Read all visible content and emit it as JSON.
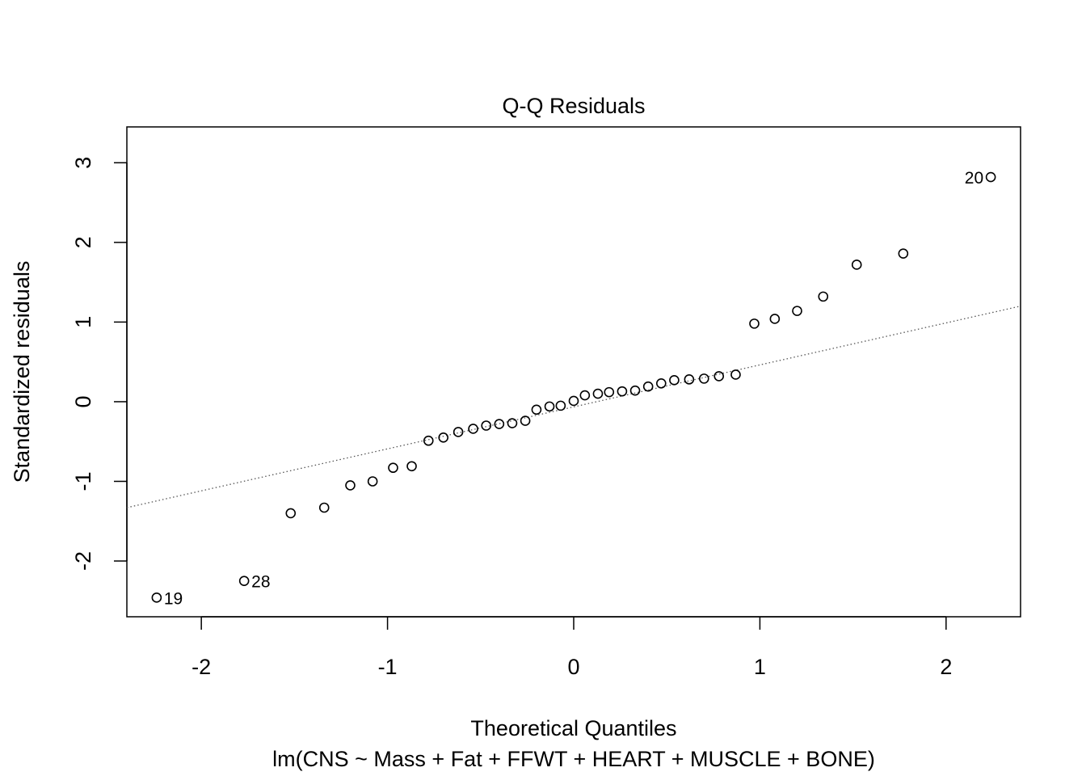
{
  "chart_data": {
    "type": "scatter",
    "title": "Q-Q Residuals",
    "xlabel": "Theoretical Quantiles",
    "ylabel": "Standardized residuals",
    "subtitle": "lm(CNS ~ Mass + Fat + FFWT + HEART + MUSCLE + BONE)",
    "xlim": [
      -2.4,
      2.4
    ],
    "ylim": [
      -2.7,
      3.45
    ],
    "x_ticks": [
      -2,
      -1,
      0,
      1,
      2
    ],
    "x_tick_labels": [
      "-2",
      "-1",
      "0",
      "1",
      "2"
    ],
    "y_ticks": [
      -2,
      -1,
      0,
      1,
      2,
      3
    ],
    "y_tick_labels": [
      "-2",
      "-1",
      "0",
      "1",
      "2",
      "3"
    ],
    "reference_line": {
      "style": "dotted",
      "color": "#555555",
      "points": [
        [
          -2.4,
          -1.33
        ],
        [
          2.4,
          1.2
        ]
      ]
    },
    "points": [
      {
        "x": -2.24,
        "y": -2.46,
        "label": "19"
      },
      {
        "x": -1.77,
        "y": -2.25,
        "label": "28"
      },
      {
        "x": -1.52,
        "y": -1.4
      },
      {
        "x": -1.34,
        "y": -1.33
      },
      {
        "x": -1.2,
        "y": -1.05
      },
      {
        "x": -1.08,
        "y": -1.0
      },
      {
        "x": -0.97,
        "y": -0.83
      },
      {
        "x": -0.87,
        "y": -0.81
      },
      {
        "x": -0.78,
        "y": -0.49
      },
      {
        "x": -0.7,
        "y": -0.45
      },
      {
        "x": -0.62,
        "y": -0.38
      },
      {
        "x": -0.54,
        "y": -0.34
      },
      {
        "x": -0.47,
        "y": -0.3
      },
      {
        "x": -0.4,
        "y": -0.28
      },
      {
        "x": -0.33,
        "y": -0.27
      },
      {
        "x": -0.26,
        "y": -0.24
      },
      {
        "x": -0.2,
        "y": -0.1
      },
      {
        "x": -0.13,
        "y": -0.06
      },
      {
        "x": -0.07,
        "y": -0.05
      },
      {
        "x": 0.0,
        "y": 0.01
      },
      {
        "x": 0.06,
        "y": 0.08
      },
      {
        "x": 0.13,
        "y": 0.1
      },
      {
        "x": 0.19,
        "y": 0.12
      },
      {
        "x": 0.26,
        "y": 0.13
      },
      {
        "x": 0.33,
        "y": 0.14
      },
      {
        "x": 0.4,
        "y": 0.19
      },
      {
        "x": 0.47,
        "y": 0.23
      },
      {
        "x": 0.54,
        "y": 0.27
      },
      {
        "x": 0.62,
        "y": 0.28
      },
      {
        "x": 0.7,
        "y": 0.29
      },
      {
        "x": 0.78,
        "y": 0.32
      },
      {
        "x": 0.87,
        "y": 0.34
      },
      {
        "x": 0.97,
        "y": 0.98
      },
      {
        "x": 1.08,
        "y": 1.04
      },
      {
        "x": 1.2,
        "y": 1.14
      },
      {
        "x": 1.34,
        "y": 1.32
      },
      {
        "x": 1.52,
        "y": 1.72
      },
      {
        "x": 1.77,
        "y": 1.86
      },
      {
        "x": 2.24,
        "y": 2.82,
        "label": "20"
      }
    ]
  }
}
